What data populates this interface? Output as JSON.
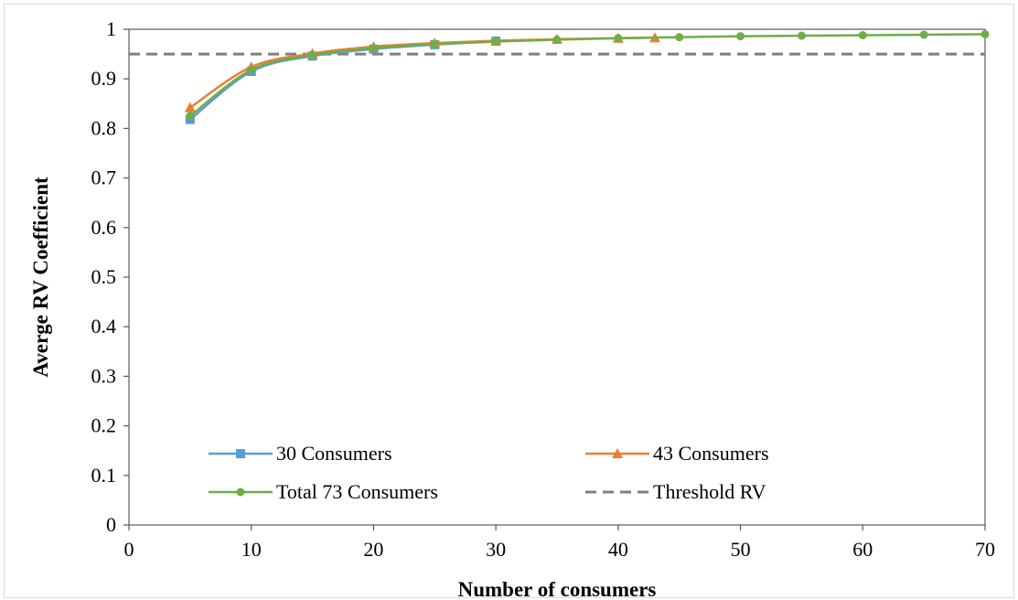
{
  "chart_data": {
    "type": "line",
    "title": "",
    "xlabel": "Number of consumers",
    "ylabel": "Averge RV Coefficient",
    "xlim": [
      0,
      70
    ],
    "ylim": [
      0,
      1
    ],
    "x_ticks": [
      "0",
      "10",
      "20",
      "30",
      "40",
      "50",
      "60",
      "70"
    ],
    "y_ticks": [
      "0",
      "0.1",
      "0.2",
      "0.3",
      "0.4",
      "0.5",
      "0.6",
      "0.7",
      "0.8",
      "0.9",
      "1"
    ],
    "grid": false,
    "legend_position": "bottom-inside",
    "series": [
      {
        "name": "30 Consumers",
        "color": "#5B9BD5",
        "marker": "square",
        "x": [
          5,
          10,
          15,
          20,
          25,
          30
        ],
        "y": [
          0.818,
          0.915,
          0.946,
          0.96,
          0.969,
          0.976
        ]
      },
      {
        "name": "43 Consumers",
        "color": "#ED7D31",
        "marker": "triangle",
        "x": [
          5,
          10,
          15,
          20,
          25,
          30,
          35,
          40,
          43
        ],
        "y": [
          0.842,
          0.924,
          0.951,
          0.965,
          0.972,
          0.977,
          0.98,
          0.982,
          0.983
        ]
      },
      {
        "name": "Total 73 Consumers",
        "color": "#70AD47",
        "marker": "circle",
        "x": [
          5,
          10,
          15,
          20,
          25,
          30,
          35,
          40,
          45,
          50,
          55,
          60,
          65,
          70
        ],
        "y": [
          0.825,
          0.918,
          0.948,
          0.962,
          0.97,
          0.975,
          0.979,
          0.982,
          0.984,
          0.986,
          0.987,
          0.988,
          0.989,
          0.99
        ]
      }
    ],
    "threshold": {
      "name": "Threshold RV",
      "value": 0.95,
      "color": "#7F7F7F",
      "style": "dashed"
    }
  }
}
